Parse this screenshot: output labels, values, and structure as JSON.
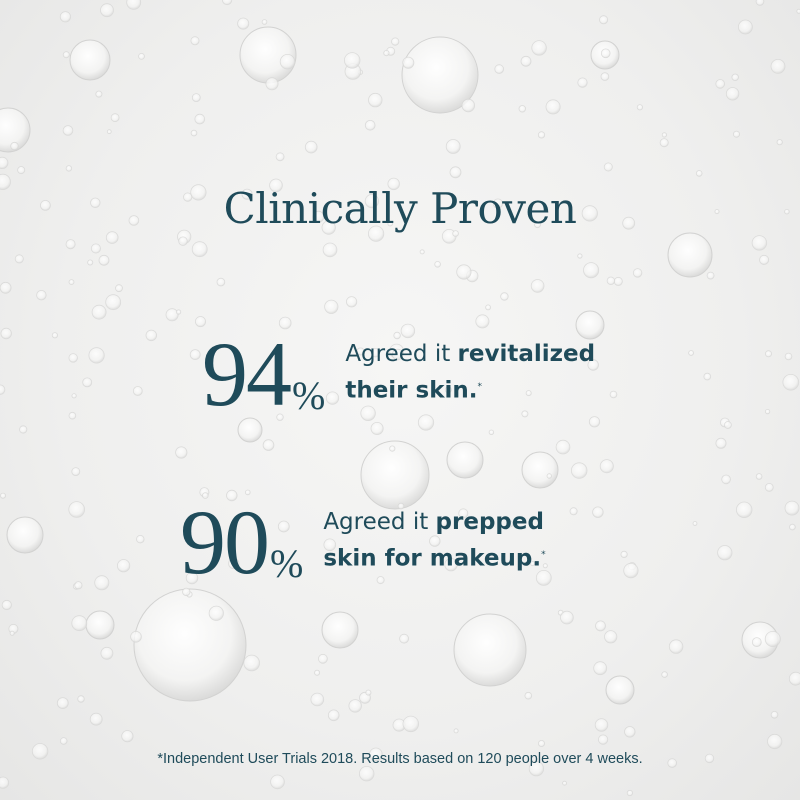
{
  "title": "Clinically Proven",
  "stats": [
    {
      "number": "94",
      "percent": "%",
      "line1_plain": "Agreed it ",
      "line1_bold": "revitalized",
      "line2_bold": "their skin.",
      "asterisk": "*"
    },
    {
      "number": "90",
      "percent": "%",
      "line1_plain": "Agreed it ",
      "line1_bold": "prepped",
      "line2_bold": "skin for makeup.",
      "asterisk": "*"
    }
  ],
  "footnote": "*Independent User Trials 2018. Results based on 120 people over 4 weeks.",
  "colors": {
    "text": "#1f4b5a",
    "background": "#efefee"
  }
}
